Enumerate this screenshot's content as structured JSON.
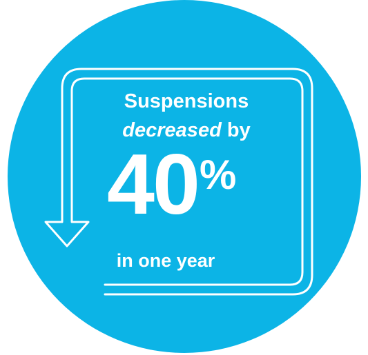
{
  "colors": {
    "circle": "#0CB4E6",
    "text": "#FFFFFF",
    "stroke": "#FFFFFF"
  },
  "graphic": {
    "arrow_icon": "down-arrow-outline-icon"
  },
  "stat": {
    "line1": "Suspensions",
    "line2_emphasis": "decreased",
    "line2_rest": " by",
    "number": "40",
    "unit": "%",
    "line3": "in one year"
  }
}
